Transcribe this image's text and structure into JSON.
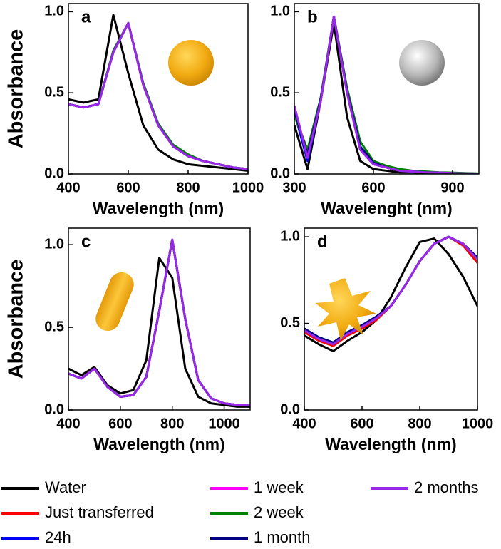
{
  "chart_data": [
    {
      "type": "line",
      "title": "a",
      "ylabel": "Absorbance",
      "xlabel": "Wavelength (nm)",
      "xlim": [
        400,
        1000
      ],
      "xticks": [
        400,
        600,
        800,
        1000
      ],
      "ylim": [
        0,
        1.05
      ],
      "yticks": [
        {
          "value": 0,
          "label": "0.0"
        },
        {
          "value": 0.5,
          "label": "0.5"
        },
        {
          "value": 1,
          "label": "1.0"
        }
      ],
      "x": [
        400,
        450,
        500,
        550,
        600,
        650,
        700,
        750,
        800,
        850,
        900,
        950,
        1000
      ],
      "series": [
        {
          "color": "#000000",
          "values": [
            0.46,
            0.44,
            0.46,
            0.98,
            0.62,
            0.3,
            0.15,
            0.09,
            0.06,
            0.05,
            0.04,
            0.03,
            0.02
          ]
        },
        {
          "color": "#ff0000",
          "values": [
            0.43,
            0.41,
            0.43,
            0.75,
            0.93,
            0.55,
            0.3,
            0.17,
            0.11,
            0.08,
            0.06,
            0.04,
            0.03
          ]
        },
        {
          "color": "#0000ff",
          "values": [
            0.43,
            0.41,
            0.43,
            0.75,
            0.93,
            0.55,
            0.3,
            0.17,
            0.11,
            0.08,
            0.06,
            0.04,
            0.03
          ]
        },
        {
          "color": "#ff00ff",
          "values": [
            0.43,
            0.41,
            0.43,
            0.75,
            0.93,
            0.55,
            0.3,
            0.17,
            0.11,
            0.08,
            0.06,
            0.04,
            0.03
          ]
        },
        {
          "color": "#008000",
          "values": [
            0.43,
            0.41,
            0.43,
            0.76,
            0.93,
            0.56,
            0.31,
            0.18,
            0.12,
            0.08,
            0.06,
            0.04,
            0.03
          ]
        },
        {
          "color": "#000080",
          "values": [
            0.43,
            0.41,
            0.43,
            0.75,
            0.93,
            0.55,
            0.3,
            0.17,
            0.11,
            0.08,
            0.06,
            0.04,
            0.03
          ]
        },
        {
          "color": "#9a28e8",
          "values": [
            0.43,
            0.41,
            0.43,
            0.75,
            0.93,
            0.55,
            0.3,
            0.17,
            0.11,
            0.08,
            0.06,
            0.04,
            0.03
          ]
        }
      ]
    },
    {
      "type": "line",
      "title": "b",
      "xlabel": "Wavelenght (nm)",
      "xlim": [
        300,
        1000
      ],
      "xticks": [
        300,
        600,
        900
      ],
      "ylim": [
        0,
        1.05
      ],
      "yticks": [
        {
          "value": 0,
          "label": "0.0"
        },
        {
          "value": 0.5,
          "label": "0.5"
        },
        {
          "value": 1,
          "label": "1.0"
        }
      ],
      "x": [
        300,
        350,
        400,
        450,
        500,
        550,
        600,
        650,
        700,
        750,
        800,
        850,
        900,
        950,
        1000
      ],
      "series": [
        {
          "color": "#000000",
          "values": [
            0.3,
            0.03,
            0.45,
            0.93,
            0.35,
            0.08,
            0.03,
            0.02,
            0.01,
            0.01,
            0.005,
            0.005,
            0.003,
            0.002,
            0.001
          ]
        },
        {
          "color": "#ff0000",
          "values": [
            0.4,
            0.09,
            0.45,
            0.97,
            0.5,
            0.15,
            0.06,
            0.04,
            0.02,
            0.015,
            0.01,
            0.008,
            0.005,
            0.003,
            0.002
          ]
        },
        {
          "color": "#0000ff",
          "values": [
            0.38,
            0.08,
            0.45,
            0.97,
            0.5,
            0.15,
            0.06,
            0.04,
            0.02,
            0.015,
            0.01,
            0.008,
            0.005,
            0.003,
            0.002
          ]
        },
        {
          "color": "#ff00ff",
          "values": [
            0.42,
            0.1,
            0.45,
            0.97,
            0.5,
            0.15,
            0.06,
            0.04,
            0.02,
            0.015,
            0.01,
            0.008,
            0.005,
            0.003,
            0.002
          ]
        },
        {
          "color": "#008000",
          "values": [
            0.36,
            0.15,
            0.47,
            0.97,
            0.53,
            0.2,
            0.08,
            0.05,
            0.03,
            0.02,
            0.015,
            0.01,
            0.008,
            0.005,
            0.003
          ]
        },
        {
          "color": "#000080",
          "values": [
            0.39,
            0.12,
            0.46,
            0.97,
            0.51,
            0.17,
            0.07,
            0.04,
            0.02,
            0.015,
            0.01,
            0.008,
            0.005,
            0.003,
            0.002
          ]
        },
        {
          "color": "#9a28e8",
          "values": [
            0.42,
            0.1,
            0.45,
            0.97,
            0.5,
            0.15,
            0.06,
            0.04,
            0.02,
            0.015,
            0.01,
            0.008,
            0.005,
            0.003,
            0.002
          ]
        }
      ]
    },
    {
      "type": "line",
      "title": "c",
      "ylabel": "Absorbance",
      "xlabel": "Wavelength (nm)",
      "xlim": [
        400,
        1100
      ],
      "xticks": [
        400,
        600,
        800,
        1000
      ],
      "ylim": [
        0,
        1.1
      ],
      "yticks": [
        {
          "value": 0,
          "label": "0.0"
        },
        {
          "value": 0.5,
          "label": "0.5"
        },
        {
          "value": 1,
          "label": "1.0"
        }
      ],
      "x": [
        400,
        450,
        500,
        550,
        600,
        650,
        700,
        750,
        800,
        850,
        900,
        950,
        1000,
        1050,
        1100
      ],
      "series": [
        {
          "color": "#000000",
          "values": [
            0.25,
            0.21,
            0.26,
            0.15,
            0.1,
            0.12,
            0.3,
            0.92,
            0.8,
            0.25,
            0.08,
            0.04,
            0.03,
            0.02,
            0.02
          ]
        },
        {
          "color": "#ff0000",
          "values": [
            0.22,
            0.19,
            0.25,
            0.14,
            0.08,
            0.09,
            0.2,
            0.6,
            1.03,
            0.55,
            0.18,
            0.07,
            0.04,
            0.03,
            0.03
          ]
        },
        {
          "color": "#0000ff",
          "values": [
            0.22,
            0.19,
            0.25,
            0.14,
            0.08,
            0.09,
            0.2,
            0.6,
            1.03,
            0.55,
            0.18,
            0.07,
            0.04,
            0.03,
            0.03
          ]
        },
        {
          "color": "#ff00ff",
          "values": [
            0.22,
            0.19,
            0.25,
            0.14,
            0.08,
            0.09,
            0.2,
            0.6,
            1.03,
            0.55,
            0.18,
            0.07,
            0.04,
            0.03,
            0.03
          ]
        },
        {
          "color": "#008000",
          "values": [
            0.22,
            0.19,
            0.25,
            0.14,
            0.08,
            0.09,
            0.2,
            0.6,
            1.03,
            0.55,
            0.18,
            0.07,
            0.04,
            0.03,
            0.03
          ]
        },
        {
          "color": "#000080",
          "values": [
            0.22,
            0.19,
            0.25,
            0.14,
            0.08,
            0.09,
            0.2,
            0.6,
            1.03,
            0.55,
            0.18,
            0.07,
            0.04,
            0.03,
            0.03
          ]
        },
        {
          "color": "#9a28e8",
          "values": [
            0.22,
            0.19,
            0.25,
            0.14,
            0.08,
            0.09,
            0.2,
            0.6,
            1.03,
            0.55,
            0.18,
            0.07,
            0.04,
            0.03,
            0.03
          ]
        }
      ]
    },
    {
      "type": "line",
      "title": "d",
      "xlabel": "Wavelength (nm)",
      "xlim": [
        400,
        1000
      ],
      "xticks": [
        400,
        600,
        800,
        1000
      ],
      "ylim": [
        0,
        1.05
      ],
      "yticks": [
        {
          "value": 0,
          "label": "0.0"
        },
        {
          "value": 0.5,
          "label": "0.5"
        },
        {
          "value": 1,
          "label": "1.0"
        }
      ],
      "x": [
        400,
        450,
        500,
        550,
        600,
        650,
        700,
        750,
        800,
        850,
        900,
        950,
        1000
      ],
      "series": [
        {
          "color": "#000000",
          "values": [
            0.43,
            0.38,
            0.34,
            0.4,
            0.45,
            0.52,
            0.65,
            0.82,
            0.97,
            0.99,
            0.9,
            0.77,
            0.6
          ]
        },
        {
          "color": "#ff0000",
          "values": [
            0.45,
            0.4,
            0.37,
            0.43,
            0.47,
            0.52,
            0.6,
            0.72,
            0.86,
            0.96,
            1.0,
            0.95,
            0.85
          ]
        },
        {
          "color": "#0000ff",
          "values": [
            0.47,
            0.42,
            0.38,
            0.44,
            0.48,
            0.53,
            0.6,
            0.72,
            0.86,
            0.96,
            1.0,
            0.96,
            0.88
          ]
        },
        {
          "color": "#ff00ff",
          "values": [
            0.46,
            0.41,
            0.38,
            0.44,
            0.48,
            0.53,
            0.6,
            0.72,
            0.86,
            0.96,
            1.0,
            0.96,
            0.87
          ]
        },
        {
          "color": "#008000",
          "values": [
            0.46,
            0.41,
            0.38,
            0.44,
            0.48,
            0.53,
            0.6,
            0.72,
            0.86,
            0.96,
            1.0,
            0.96,
            0.87
          ]
        },
        {
          "color": "#000080",
          "values": [
            0.47,
            0.42,
            0.39,
            0.45,
            0.49,
            0.54,
            0.6,
            0.72,
            0.86,
            0.96,
            1.0,
            0.96,
            0.88
          ]
        },
        {
          "color": "#9a28e8",
          "values": [
            0.46,
            0.41,
            0.38,
            0.44,
            0.48,
            0.53,
            0.6,
            0.72,
            0.86,
            0.96,
            1.0,
            0.96,
            0.87
          ]
        }
      ]
    }
  ],
  "legend": {
    "items": [
      {
        "name": "Water",
        "color": "#000000"
      },
      {
        "name": "Just transferred",
        "color": "#ff0000"
      },
      {
        "name": "24h",
        "color": "#0000ff"
      },
      {
        "name": "1 week",
        "color": "#ff00ff"
      },
      {
        "name": "2 week",
        "color": "#008000"
      },
      {
        "name": "1 month",
        "color": "#000080"
      },
      {
        "name": "2 months",
        "color": "#9a28e8"
      }
    ]
  }
}
